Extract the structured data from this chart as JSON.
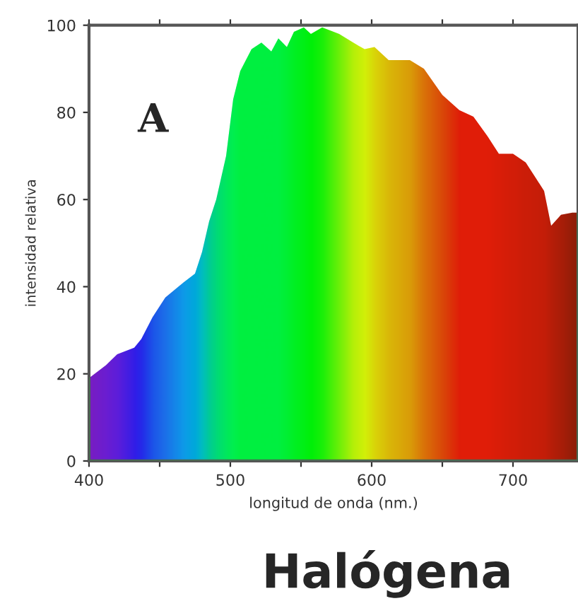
{
  "chart_data": {
    "type": "area",
    "title": "Halógena",
    "xlabel": "longitud de onda (nm.)",
    "ylabel": "intensidad relativa",
    "annotations": [
      "A"
    ],
    "xlim": [
      400,
      746
    ],
    "ylim": [
      0,
      100
    ],
    "xticks": [
      400,
      {
        "value": 450,
        "label": null
      },
      500,
      {
        "value": 550,
        "label": null
      },
      600,
      {
        "value": 650,
        "label": null
      },
      700
    ],
    "yticks": [
      0,
      20,
      40,
      60,
      80,
      100
    ],
    "grid": false,
    "series": [
      {
        "color": "#00f040",
        "x": [
          400,
          412,
          420,
          432,
          437,
          445,
          454,
          467,
          475,
          480,
          485,
          490,
          497,
          502,
          507,
          515,
          522,
          529,
          534,
          540,
          545,
          552,
          557,
          565,
          577,
          587,
          595,
          602,
          612,
          627,
          637,
          650,
          662,
          672,
          682,
          690,
          700,
          709,
          722,
          727,
          734,
          742,
          746
        ],
        "values": [
          19,
          22,
          24.5,
          26,
          28,
          33,
          37.5,
          41,
          43,
          48,
          55,
          60,
          70,
          83,
          89.5,
          94.5,
          96,
          94,
          97,
          95,
          98.5,
          99.5,
          98,
          99.5,
          98,
          96,
          94.5,
          95,
          92,
          92,
          90,
          84,
          80.5,
          79,
          74.5,
          70.5,
          70.5,
          68.5,
          62,
          54,
          56.5,
          57,
          57
        ],
        "colors": [
          "#8a00d4",
          "#7a00e6",
          "#6a00f0",
          "#3a00ff",
          "#2a10ff",
          "#2040ff",
          "#2060ff",
          "#1090ff",
          "#00a0f0",
          "#00b8d0",
          "#00c8a0",
          "#00d880",
          "#00e860",
          "#00f050",
          "#00f040",
          "#00f040",
          "#00f040",
          "#00f040",
          "#00f040",
          "#00f030",
          "#00f020",
          "#00f010",
          "#00f000",
          "#20f000",
          "#80f000",
          "#d0f000",
          "#f0f000",
          "#f8d000",
          "#f8b000",
          "#f89000",
          "#f86000",
          "#f83000",
          "#ff0000",
          "#ff0000",
          "#ff0000",
          "#f80000",
          "#f00000",
          "#e80000",
          "#e00000",
          "#d00000",
          "#c00000",
          "#a80000",
          "#a00000"
        ]
      }
    ]
  }
}
